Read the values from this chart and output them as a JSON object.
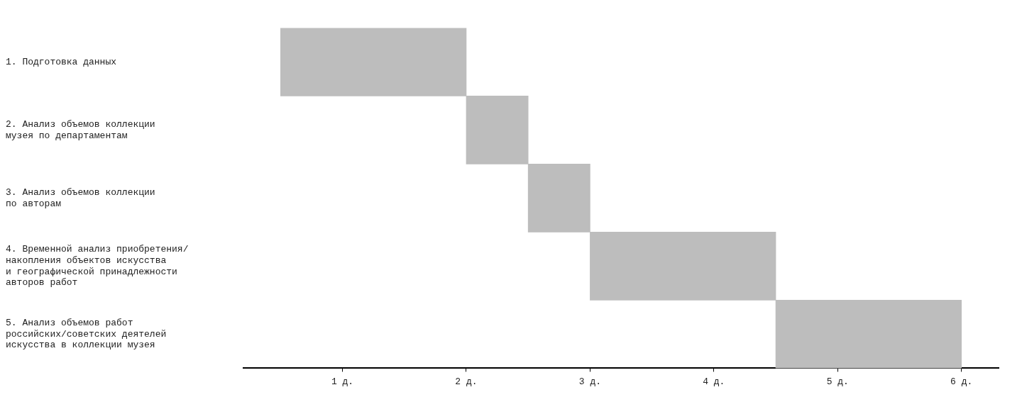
{
  "chart_data": {
    "type": "bar",
    "orientation": "horizontal",
    "categories": [
      "1. Подготовка данных",
      "2. Анализ объемов коллекции\nмузея по департаментам",
      "3. Анализ объемов коллекции\nпо авторам",
      "4. Временной анализ приобретения/\nнакопления объектов искусства\nи географической принадлежности\nавторов работ",
      "5. Анализ объемов работ\nроссийских/советских деятелей\nискусства в коллекции музея"
    ],
    "base": [
      0.5,
      2,
      2.5,
      3,
      4.5
    ],
    "values": [
      1.5,
      0.5,
      0.5,
      1.5,
      1.5
    ],
    "color": "#bdbdbd",
    "xlim": [
      0.2,
      6.3
    ],
    "xticks": [
      {
        "value": 1,
        "label": "1 д."
      },
      {
        "value": 2,
        "label": "2 д."
      },
      {
        "value": 3,
        "label": "3 д."
      },
      {
        "value": 4,
        "label": "4 д."
      },
      {
        "value": 5,
        "label": "5 д."
      },
      {
        "value": 6,
        "label": "6 д."
      }
    ]
  }
}
